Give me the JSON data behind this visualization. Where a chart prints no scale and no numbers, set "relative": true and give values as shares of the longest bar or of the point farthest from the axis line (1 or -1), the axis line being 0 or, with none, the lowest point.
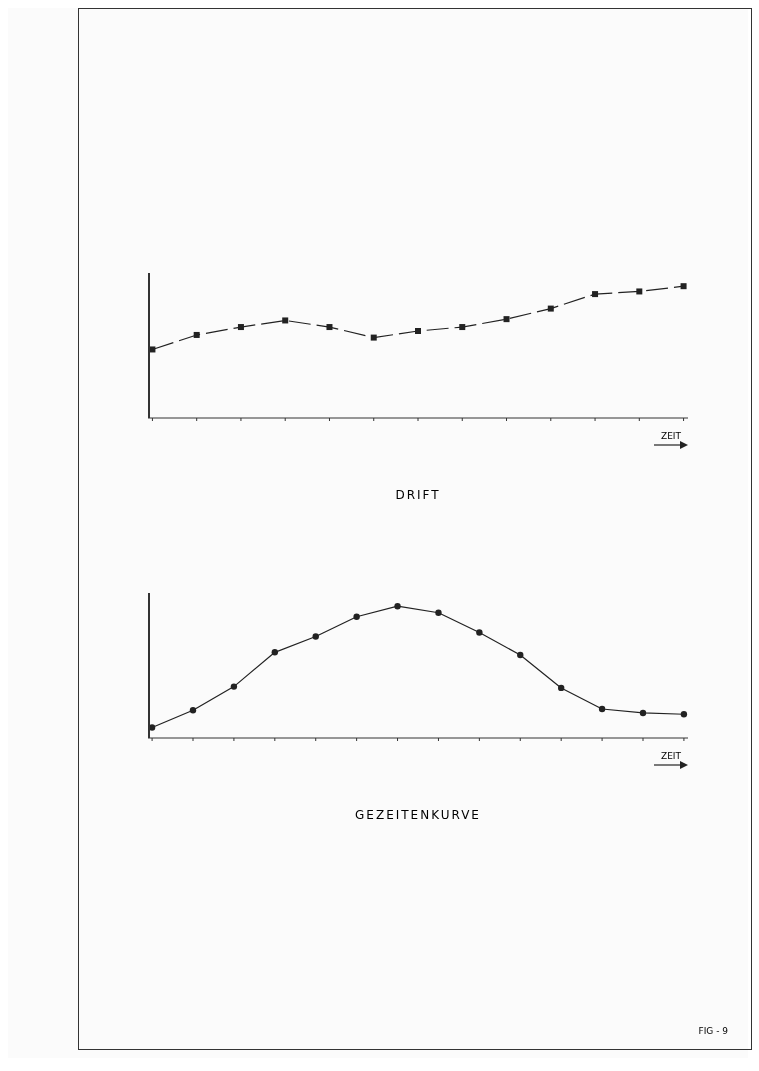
{
  "chart_data": [
    {
      "type": "line",
      "title": "DRIFT",
      "relative": true,
      "categories": [
        null,
        null,
        null,
        null,
        null,
        null,
        null,
        null,
        null,
        null,
        null,
        null,
        null
      ],
      "series": [
        {
          "color": "#222222",
          "values": [
            0.52,
            0.63,
            0.69,
            0.74,
            0.69,
            0.61,
            0.66,
            0.69,
            0.75,
            0.83,
            0.94,
            0.96,
            1
          ]
        }
      ],
      "marker": "square",
      "line_style": "dashed",
      "annotations": [
        "ZEIT"
      ]
    },
    {
      "type": "line",
      "title": "GEZEITENKURVE",
      "relative": true,
      "categories": [
        null,
        null,
        null,
        null,
        null,
        null,
        null,
        null,
        null,
        null,
        null,
        null,
        null,
        null
      ],
      "series": [
        {
          "color": "#222222",
          "values": [
            0.08,
            0.21,
            0.39,
            0.65,
            0.77,
            0.92,
            1,
            0.95,
            0.8,
            0.63,
            0.38,
            0.22,
            0.19,
            0.18
          ]
        }
      ],
      "marker": "circle",
      "line_style": "solid",
      "annotations": [
        "ZEIT",
        "FIG - 9"
      ]
    }
  ]
}
